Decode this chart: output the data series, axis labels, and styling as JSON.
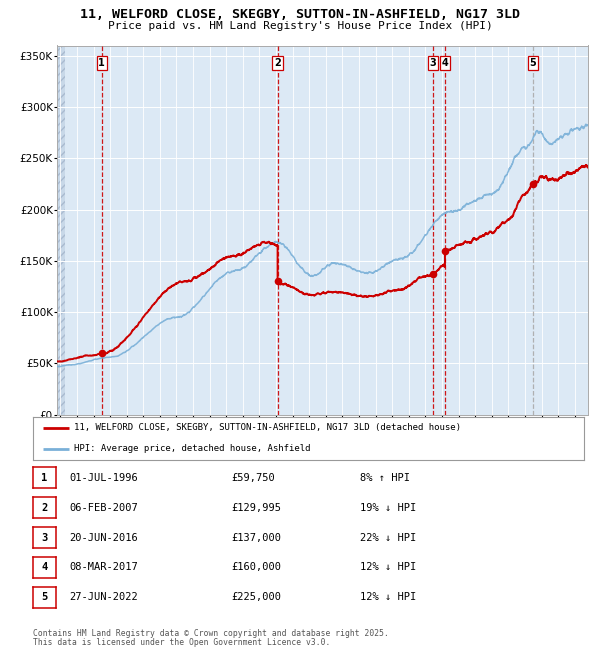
{
  "title_line1": "11, WELFORD CLOSE, SKEGBY, SUTTON-IN-ASHFIELD, NG17 3LD",
  "title_line2": "Price paid vs. HM Land Registry's House Price Index (HPI)",
  "ylim": [
    0,
    360000
  ],
  "xlim_start": 1993.8,
  "xlim_end": 2025.8,
  "yticks": [
    0,
    50000,
    100000,
    150000,
    200000,
    250000,
    300000,
    350000
  ],
  "ytick_labels": [
    "£0",
    "£50K",
    "£100K",
    "£150K",
    "£200K",
    "£250K",
    "£300K",
    "£350K"
  ],
  "hpi_color": "#7ab0d8",
  "price_color": "#cc0000",
  "dot_color": "#cc0000",
  "bg_color": "#dce9f5",
  "transactions": [
    {
      "num": 1,
      "date_x": 1996.5,
      "price": 59750,
      "label": "01-JUL-1996",
      "price_str": "£59,750",
      "pct": "8% ↑ HPI",
      "vline_color": "#cc0000"
    },
    {
      "num": 2,
      "date_x": 2007.09,
      "price": 129995,
      "label": "06-FEB-2007",
      "price_str": "£129,995",
      "pct": "19% ↓ HPI",
      "vline_color": "#cc0000"
    },
    {
      "num": 3,
      "date_x": 2016.47,
      "price": 137000,
      "label": "20-JUN-2016",
      "price_str": "£137,000",
      "pct": "22% ↓ HPI",
      "vline_color": "#cc0000"
    },
    {
      "num": 4,
      "date_x": 2017.18,
      "price": 160000,
      "label": "08-MAR-2017",
      "price_str": "£160,000",
      "pct": "12% ↓ HPI",
      "vline_color": "#cc0000"
    },
    {
      "num": 5,
      "date_x": 2022.48,
      "price": 225000,
      "label": "27-JUN-2022",
      "price_str": "£225,000",
      "pct": "12% ↓ HPI",
      "vline_color": "#aaaaaa"
    }
  ],
  "legend_line1": "11, WELFORD CLOSE, SKEGBY, SUTTON-IN-ASHFIELD, NG17 3LD (detached house)",
  "legend_line2": "HPI: Average price, detached house, Ashfield",
  "footer_line1": "Contains HM Land Registry data © Crown copyright and database right 2025.",
  "footer_line2": "This data is licensed under the Open Government Licence v3.0."
}
